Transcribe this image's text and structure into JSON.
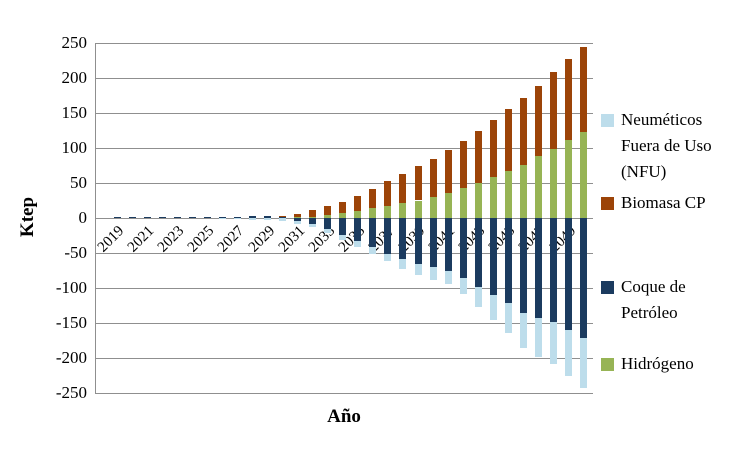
{
  "chart_data": {
    "type": "bar",
    "stacked": true,
    "title": "",
    "xlabel": "Año",
    "ylabel": "Ktep",
    "ylim": [
      -250,
      250
    ],
    "ytick_step": 50,
    "yticks": [
      250,
      200,
      150,
      100,
      50,
      0,
      -50,
      -100,
      -150,
      -200,
      -250
    ],
    "ytick_labels": [
      "250",
      "200",
      "150",
      "100",
      "50",
      "0",
      "-50",
      "-100",
      "-150",
      "-200",
      "-250"
    ],
    "grid": true,
    "legend_position": "right",
    "years": [
      2019,
      2020,
      2021,
      2022,
      2023,
      2024,
      2025,
      2026,
      2027,
      2028,
      2029,
      2030,
      2031,
      2032,
      2033,
      2034,
      2035,
      2036,
      2037,
      2038,
      2039,
      2040,
      2041,
      2042,
      2043,
      2044,
      2045,
      2046,
      2047,
      2048,
      2049,
      2050
    ],
    "xtick_labels": [
      "2019",
      "2021",
      "2023",
      "2025",
      "2027",
      "2029",
      "2031",
      "2033",
      "2035",
      "2037",
      "2039",
      "2041",
      "2043",
      "2045",
      "2047",
      "2049"
    ],
    "stack_up_order": [
      "coque",
      "hidrogeno",
      "biomasa"
    ],
    "stack_down_order": [
      "coque",
      "nfu"
    ],
    "series": [
      {
        "id": "nfu",
        "name": "Neuméticos Fuera de Uso (NFU)",
        "color": "#BDDDEB",
        "values": [
          0,
          0,
          0,
          0,
          0,
          0,
          0,
          -2,
          -2,
          -3,
          -3,
          -4,
          -4,
          -5,
          -6,
          -7,
          -8,
          -10,
          -11,
          -14,
          -16,
          -18,
          -19,
          -24,
          -29,
          -36,
          -43,
          -50,
          -55,
          -60,
          -66,
          -71
        ]
      },
      {
        "id": "biomasa",
        "name": "Biomasa CP",
        "color": "#9C4408",
        "values": [
          0,
          0,
          0,
          0,
          0,
          0,
          0,
          0,
          0,
          0,
          0,
          2,
          5,
          10,
          13,
          16,
          21,
          28,
          36,
          42,
          49,
          55,
          61,
          67,
          75,
          82,
          89,
          96,
          101,
          110,
          116,
          121
        ]
      },
      {
        "id": "coque",
        "name": "Coque de Petróleo",
        "color": "#1B3B5F",
        "values": [
          2,
          2,
          2,
          2,
          2,
          2,
          2,
          2,
          2,
          3,
          3,
          1,
          -4,
          -8,
          -16,
          -24,
          -33,
          -42,
          -51,
          -59,
          -66,
          -70,
          -76,
          -85,
          -98,
          -110,
          -122,
          -136,
          -143,
          -149,
          -160,
          -172
        ]
      },
      {
        "id": "hidrogeno",
        "name": "Hidrógeno",
        "color": "#97B455",
        "values": [
          0,
          0,
          0,
          0,
          0,
          0,
          0,
          0,
          0,
          0,
          0,
          0,
          1,
          2,
          4,
          7,
          10,
          14,
          17,
          21,
          25,
          30,
          36,
          43,
          50,
          58,
          67,
          76,
          88,
          98,
          111,
          123
        ]
      }
    ],
    "legend_items": [
      {
        "label": "Neuméticos Fuera de Uso (NFU)",
        "color": "#BDDDEB"
      },
      {
        "label": "Biomasa CP",
        "color": "#9C4408"
      },
      {
        "label": "Coque de Petróleo",
        "color": "#1B3B5F"
      },
      {
        "label": "Hidrógeno",
        "color": "#97B455"
      }
    ],
    "axis_color": "#8f8f8f",
    "text_color": "#000000"
  }
}
